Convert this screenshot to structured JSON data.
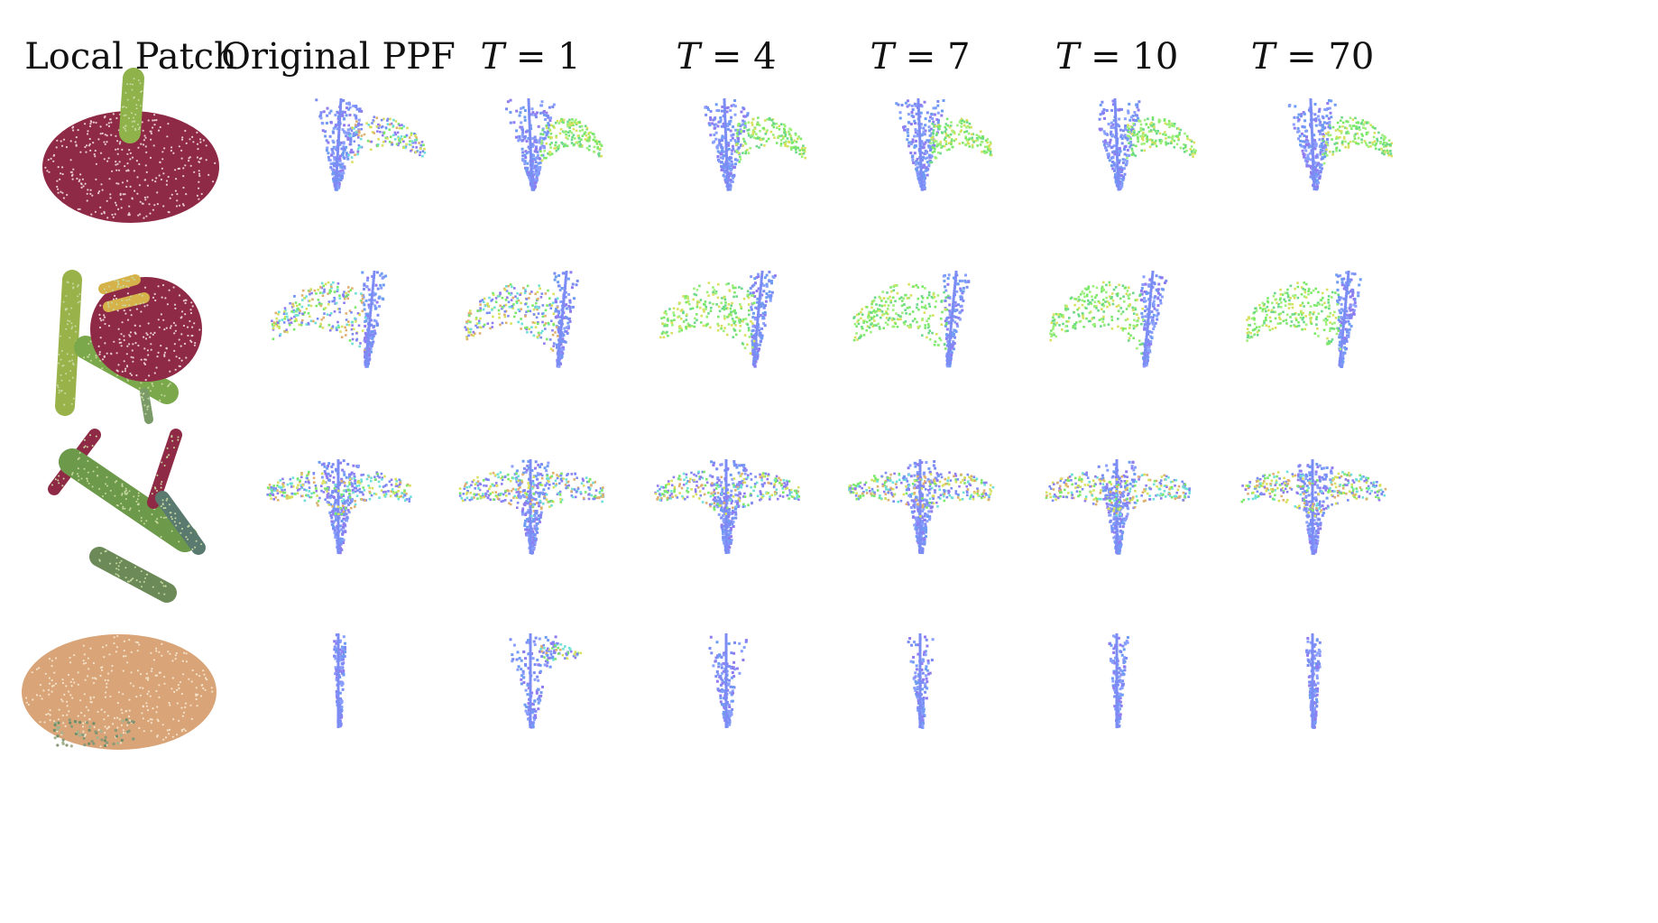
{
  "figure": {
    "headers": [
      {
        "id": "local-patch",
        "label": "Local Patch"
      },
      {
        "id": "original-ppf",
        "label": "Original PPF"
      },
      {
        "id": "t1",
        "var": "T",
        "rest": " = 1"
      },
      {
        "id": "t4",
        "var": "T",
        "rest": " = 4"
      },
      {
        "id": "t7",
        "var": "T",
        "rest": " = 7"
      },
      {
        "id": "t10",
        "var": "T",
        "rest": " = 10"
      },
      {
        "id": "t70",
        "var": "T",
        "rest": " = 70"
      }
    ],
    "rows": [
      {
        "id": "row-1",
        "patch": "disc-with-post",
        "patch_color": "#8e2a45",
        "post_color": "#8fb24a"
      },
      {
        "id": "row-2",
        "patch": "chair-seat",
        "patch_color": "#8e2a45",
        "post_color": "#7aa84a"
      },
      {
        "id": "row-3",
        "patch": "scattered-slats",
        "patch_color": "#6c9a4a",
        "post_color": "#8e2a45"
      },
      {
        "id": "row-4",
        "patch": "flat-ellipse",
        "patch_color": "#d9a477",
        "post_color": "#8a9a78"
      }
    ],
    "colors": {
      "fan_blue": "#7c8cf5",
      "fan_purple": "#8f7cf0",
      "green": "#7be86a",
      "yellow": "#d8e060",
      "cyan": "#6ee0d8",
      "orange": "#e0b070"
    }
  }
}
